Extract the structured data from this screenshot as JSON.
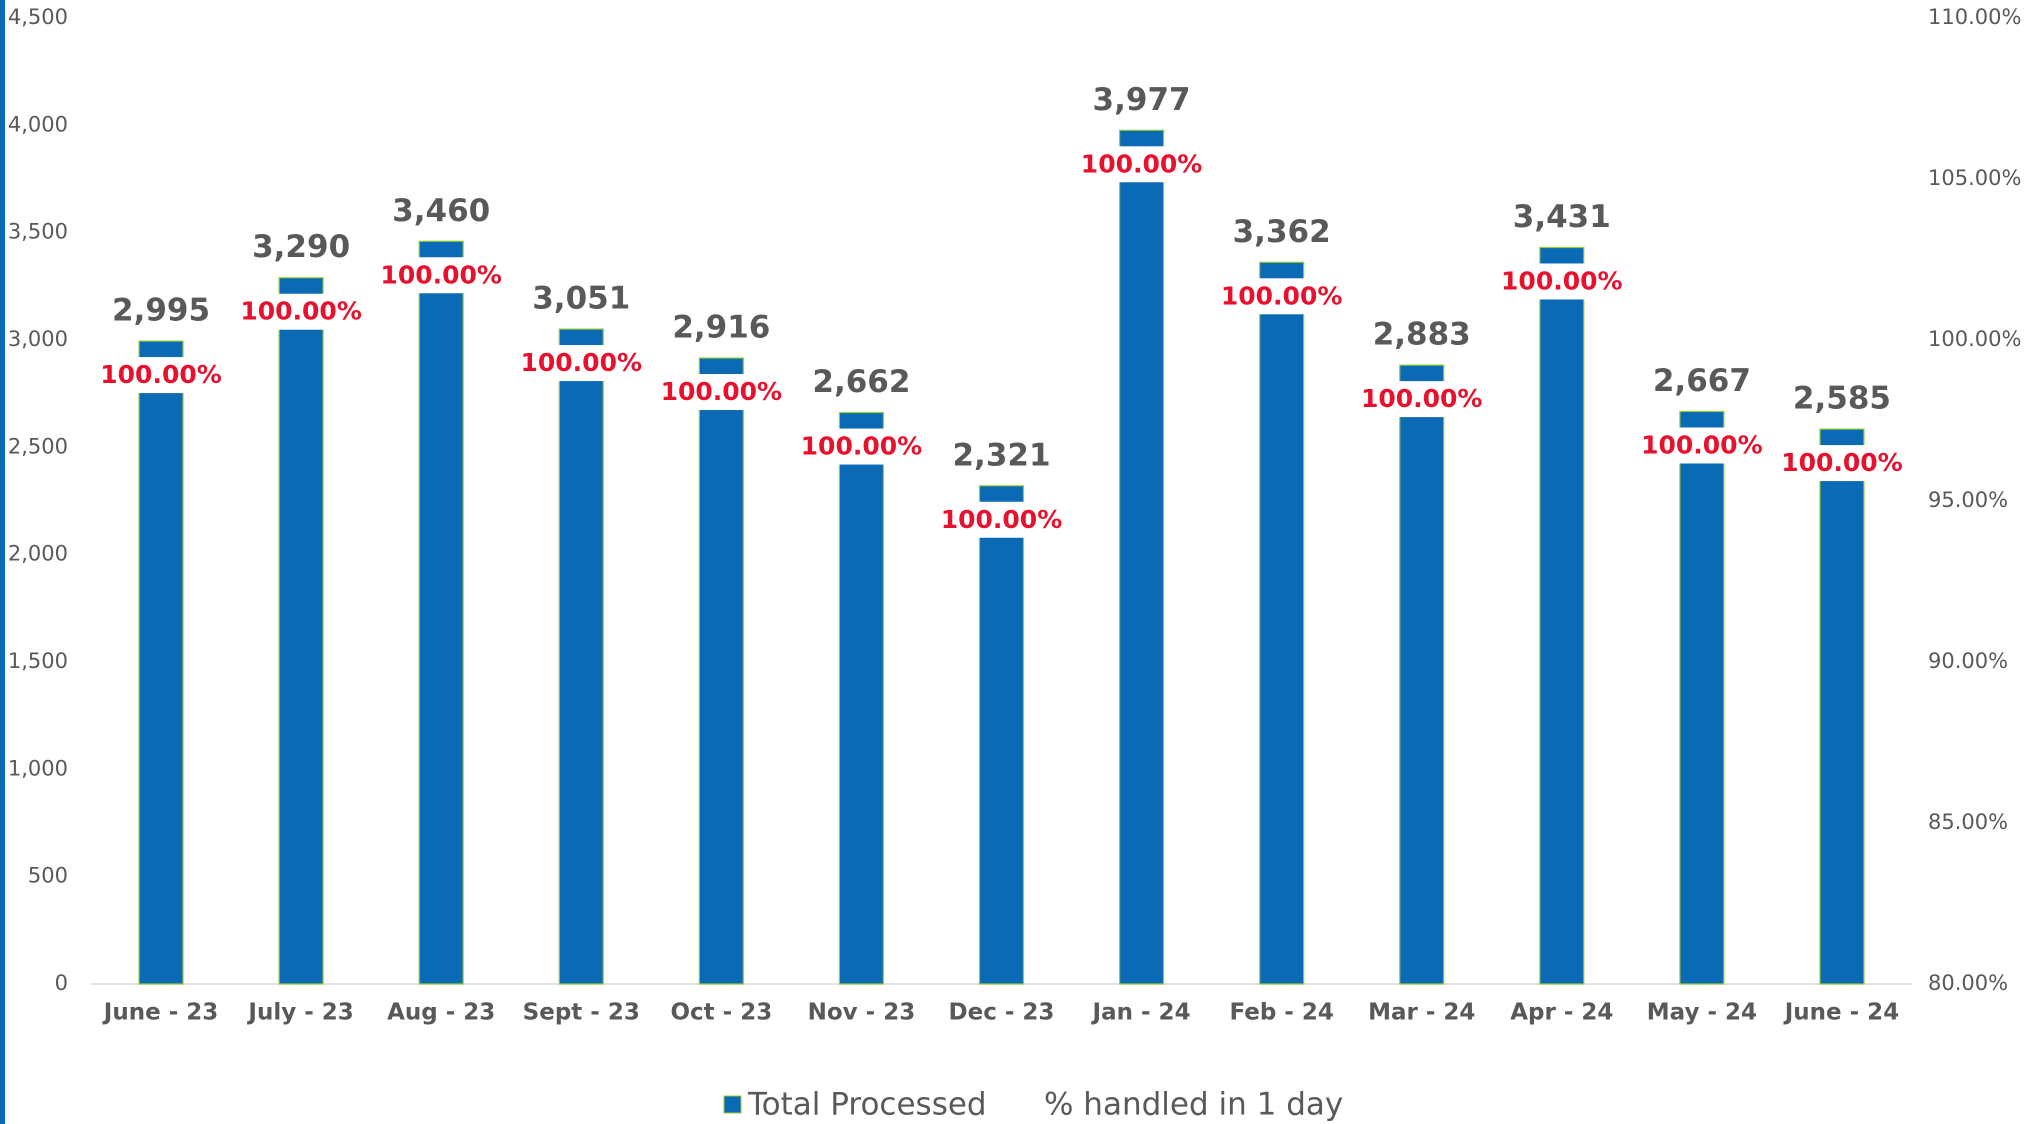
{
  "chart_data": {
    "type": "bar",
    "categories": [
      "June - 23",
      "July - 23",
      "Aug - 23",
      "Sept - 23",
      "Oct - 23",
      "Nov - 23",
      "Dec - 23",
      "Jan - 24",
      "Feb - 24",
      "Mar - 24",
      "Apr - 24",
      "May - 24",
      "June - 24"
    ],
    "series": [
      {
        "name": "Total Processed",
        "color": "#0a6ab6",
        "values": [
          2995,
          3290,
          3460,
          3051,
          2916,
          2662,
          2321,
          3977,
          3362,
          2883,
          3431,
          2667,
          2585
        ],
        "value_labels": [
          "2,995",
          "3,290",
          "3,460",
          "3,051",
          "2,916",
          "2,662",
          "2,321",
          "3,977",
          "3,362",
          "2,883",
          "3,431",
          "2,667",
          "2,585"
        ]
      },
      {
        "name": "% handled in 1 day",
        "color": "#e8112d",
        "axis": "y2",
        "values": [
          100,
          100,
          100,
          100,
          100,
          100,
          100,
          100,
          100,
          100,
          100,
          100,
          100
        ],
        "value_labels": [
          "100.00%",
          "100.00%",
          "100.00%",
          "100.00%",
          "100.00%",
          "100.00%",
          "100.00%",
          "100.00%",
          "100.00%",
          "100.00%",
          "100.00%",
          "100.00%",
          "100.00%"
        ]
      }
    ],
    "ylim": [
      0,
      4500
    ],
    "yticks": [
      0,
      500,
      {
        "value": 1000,
        "label": "1,000"
      },
      {
        "value": 1500,
        "label": "1,500"
      },
      {
        "value": 2000,
        "label": "2,000"
      },
      {
        "value": 2500,
        "label": "2,500"
      },
      {
        "value": 3000,
        "label": "3,000"
      },
      {
        "value": 3500,
        "label": "3,500"
      },
      {
        "value": 4000,
        "label": "4,000"
      },
      {
        "value": 4500,
        "label": "4,500"
      }
    ],
    "y2lim": [
      80,
      110
    ],
    "y2ticks": [
      {
        "value": 80,
        "label": "80.00%"
      },
      {
        "value": 85,
        "label": "85.00%"
      },
      {
        "value": 90,
        "label": "90.00%"
      },
      {
        "value": 95,
        "label": "95.00%"
      },
      {
        "value": 100,
        "label": "100.00%"
      },
      {
        "value": 105,
        "label": "105.00%"
      },
      {
        "value": 110,
        "label": "110.00%"
      }
    ],
    "legend": "bottom"
  }
}
